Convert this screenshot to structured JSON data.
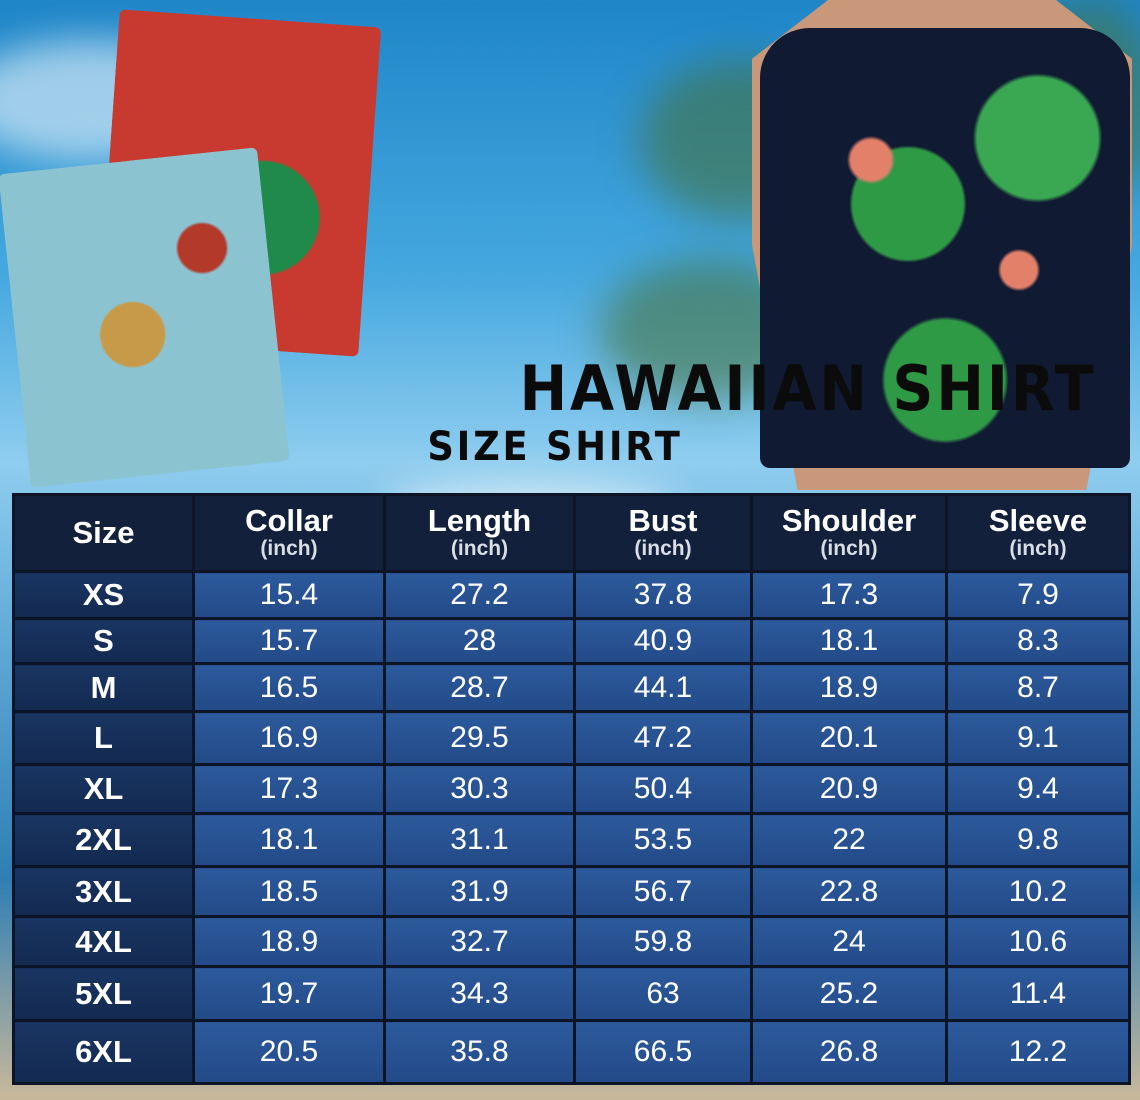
{
  "title": "HAWAIIAN SHIRT",
  "subtitle": "SIZE SHIRT",
  "table": {
    "headers": [
      {
        "label": "Size",
        "unit": ""
      },
      {
        "label": "Collar",
        "unit": "(inch)"
      },
      {
        "label": "Length",
        "unit": "(inch)"
      },
      {
        "label": "Bust",
        "unit": "(inch)"
      },
      {
        "label": "Shoulder",
        "unit": "(inch)"
      },
      {
        "label": "Sleeve",
        "unit": "(inch)"
      }
    ],
    "rows": [
      [
        "XS",
        "15.4",
        "27.2",
        "37.8",
        "17.3",
        "7.9"
      ],
      [
        "S",
        "15.7",
        "28",
        "40.9",
        "18.1",
        "8.3"
      ],
      [
        "M",
        "16.5",
        "28.7",
        "44.1",
        "18.9",
        "8.7"
      ],
      [
        "L",
        "16.9",
        "29.5",
        "47.2",
        "20.1",
        "9.1"
      ],
      [
        "XL",
        "17.3",
        "30.3",
        "50.4",
        "20.9",
        "9.4"
      ],
      [
        "2XL",
        "18.1",
        "31.1",
        "53.5",
        "22",
        "9.8"
      ],
      [
        "3XL",
        "18.5",
        "31.9",
        "56.7",
        "22.8",
        "10.2"
      ],
      [
        "4XL",
        "18.9",
        "32.7",
        "59.8",
        "24",
        "10.6"
      ],
      [
        "5XL",
        "19.7",
        "34.3",
        "63",
        "25.2",
        "11.4"
      ],
      [
        "6XL",
        "20.5",
        "35.8",
        "66.5",
        "26.8",
        "12.2"
      ]
    ]
  },
  "colors": {
    "header": "#13203b",
    "size_cell": "#1a3563",
    "data_cell": "#2c5a9c",
    "border": "#0c1426"
  }
}
